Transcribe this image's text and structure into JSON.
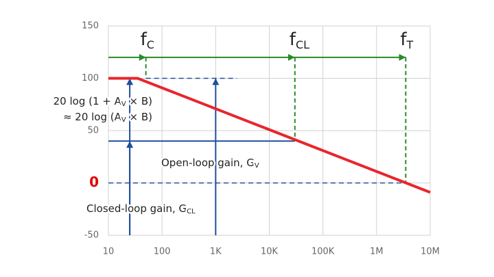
{
  "chart_data": {
    "type": "line",
    "x": [
      10,
      35,
      10000000
    ],
    "series": [
      {
        "color": "#e8262b",
        "values": [
          100,
          100,
          -9
        ]
      }
    ],
    "xlim": [
      10,
      10000000
    ],
    "log_x": true,
    "xticks": [
      10,
      100,
      {
        "value": 1000,
        "label": "1K"
      },
      {
        "value": 10000,
        "label": "10K"
      },
      {
        "value": 100000,
        "label": "100K"
      },
      {
        "value": 1000000,
        "label": "1M"
      },
      {
        "value": 10000000,
        "label": "10M"
      }
    ],
    "ylim": [
      -50,
      150
    ],
    "yticks": [
      -50,
      0,
      50,
      100,
      150
    ],
    "emphasized_ytick": 0,
    "emphasis_color": "#e00000",
    "grid": true,
    "marker_color": "#2a8a2a",
    "marker_arrow_y": 120,
    "markers": [
      {
        "symbol": "f",
        "subscript": "C",
        "x": 50,
        "y": 100
      },
      {
        "symbol": "f",
        "subscript": "CL",
        "x": 30000,
        "y": 40
      },
      {
        "symbol": "f",
        "subscript": "T",
        "x": 3500000,
        "y": 0
      }
    ],
    "guide_color": "#1f4e9c",
    "guide_lines": [
      {
        "x": [
          50,
          2500
        ],
        "y": 100,
        "dashed": true
      },
      {
        "x": [
          10,
          30000
        ],
        "y": 40,
        "dashed": false
      },
      {
        "x": [
          10,
          3500000
        ],
        "y": 0,
        "dashed": true
      }
    ],
    "arrows": [
      {
        "x": 25,
        "from": -50,
        "to": 100
      },
      {
        "x": 25,
        "from": -50,
        "to": 40
      },
      {
        "x": 1000,
        "from": -50,
        "to": 100
      }
    ],
    "annotations": [
      {
        "parts": [
          "20 log (1 + A",
          "V",
          " × B)"
        ]
      },
      {
        "parts": [
          "≈ 20 log (A",
          "V",
          " × B)"
        ]
      },
      {
        "parts": [
          "Open-loop gain, G",
          "V"
        ]
      },
      {
        "parts": [
          "Closed-loop gain, G",
          "CL"
        ]
      }
    ]
  }
}
